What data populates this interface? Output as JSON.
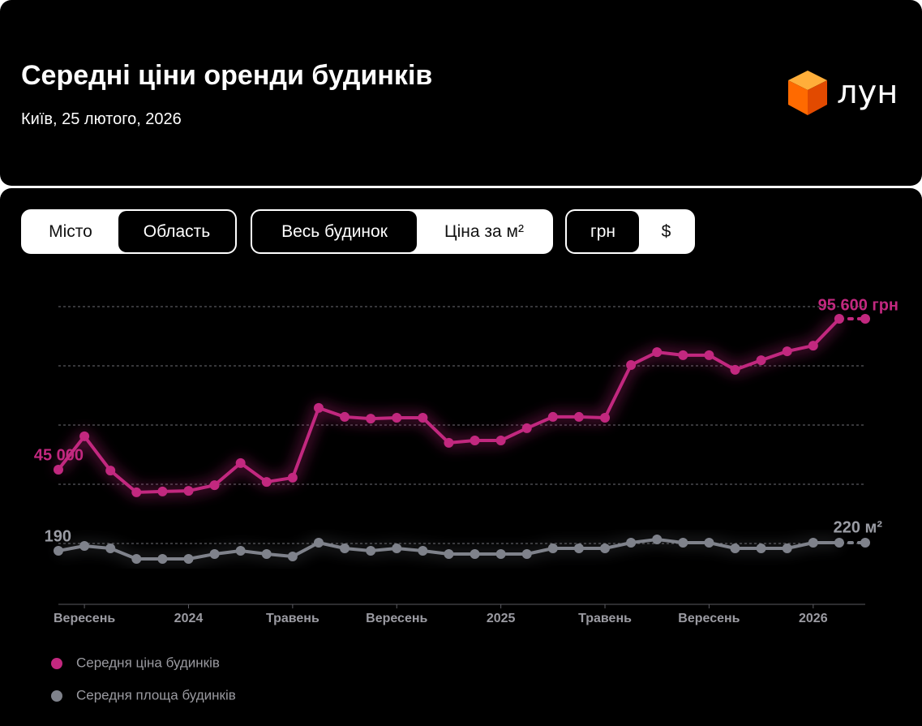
{
  "header": {
    "title": "Середні ціни оренди будинків",
    "subtitle": "Київ, 25 лютого, 2026",
    "logo": "лун"
  },
  "ui": {
    "toggles": [
      {
        "options": [
          "Місто",
          "Область"
        ],
        "active": 1
      },
      {
        "options": [
          "Весь будинок",
          "Ціна за м²"
        ],
        "active": 0
      },
      {
        "options": [
          "грн",
          "$"
        ],
        "active": 0
      }
    ]
  },
  "chart_data": {
    "type": "line",
    "categories": [
      null,
      "Вересень",
      null,
      null,
      null,
      "2024",
      null,
      null,
      null,
      "Травень",
      null,
      null,
      null,
      "Вересень",
      null,
      null,
      null,
      "2025",
      null,
      null,
      null,
      "Травень",
      null,
      null,
      null,
      "Вересень",
      null,
      null,
      null,
      "2026",
      null,
      null
    ],
    "series": [
      {
        "name": "Середня ціна будинків",
        "color": "#c2287f",
        "values": [
          45000,
          56200,
          44700,
          37400,
          37700,
          37900,
          39800,
          47200,
          40900,
          42300,
          65700,
          62700,
          62100,
          62400,
          62400,
          54000,
          54800,
          54800,
          58900,
          62700,
          62700,
          62400,
          80100,
          84400,
          83400,
          83400,
          78500,
          81700,
          84700,
          86600,
          95600,
          95600
        ],
        "value_labels": [
          "45 000",
          null,
          null,
          null,
          null,
          null,
          null,
          null,
          null,
          null,
          null,
          null,
          null,
          null,
          null,
          null,
          null,
          null,
          null,
          null,
          null,
          null,
          null,
          null,
          null,
          null,
          null,
          null,
          null,
          null,
          null,
          "95 600 грн"
        ]
      },
      {
        "name": "Середня площа будинків",
        "color": "#7f828b",
        "values": [
          190,
          208,
          199,
          160,
          160,
          160,
          178,
          190,
          178,
          169,
          220,
          199,
          190,
          199,
          190,
          178,
          178,
          178,
          178,
          199,
          199,
          199,
          220,
          232,
          220,
          220,
          199,
          199,
          199,
          220,
          220,
          220
        ],
        "value_labels": [
          "190",
          null,
          null,
          null,
          null,
          null,
          null,
          null,
          null,
          null,
          null,
          null,
          null,
          null,
          null,
          null,
          null,
          null,
          null,
          null,
          null,
          null,
          null,
          null,
          null,
          null,
          null,
          null,
          null,
          null,
          null,
          "220 м²"
        ]
      }
    ]
  }
}
